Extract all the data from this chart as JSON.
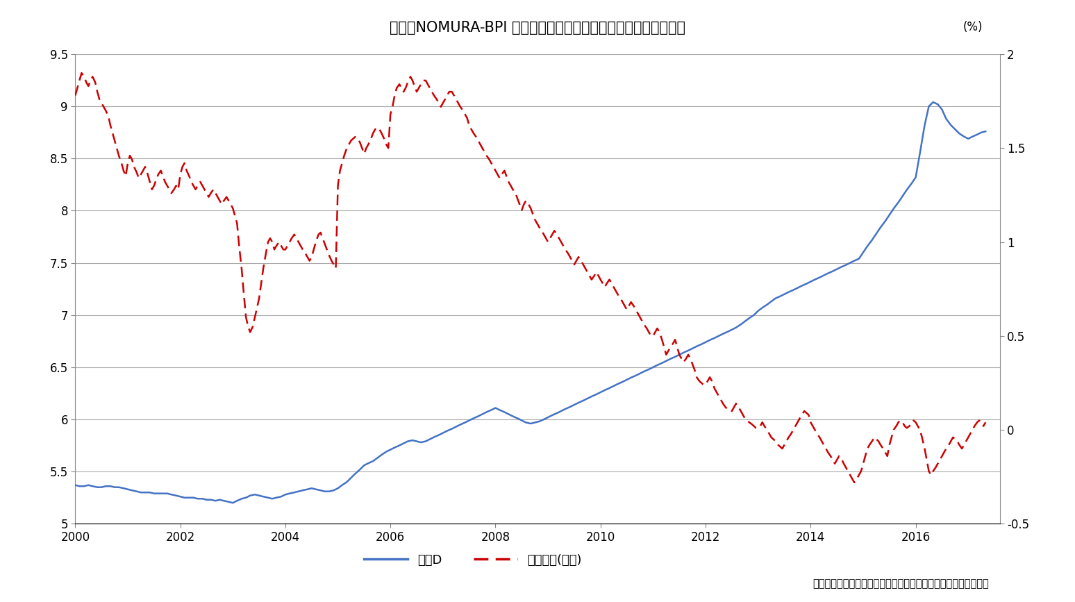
{
  "title": "図表：NOMURA-BPI 総合の修正デュレーションと長期金利の推移",
  "pct_label": "(%)",
  "source_text": "出所：野村證券及び日本相互証券の公表する数値を基に筆者作成",
  "legend_blue": "修正D",
  "legend_red": "長期金利(右軸)",
  "xlim_left": 2000.0,
  "xlim_right": 2017.6,
  "ylim_left": [
    5.0,
    9.5
  ],
  "ylim_right": [
    -0.5,
    2.0
  ],
  "yticks_left": [
    5.0,
    5.5,
    6.0,
    6.5,
    7.0,
    7.5,
    8.0,
    8.5,
    9.0,
    9.5
  ],
  "yticks_right": [
    -0.5,
    0.0,
    0.5,
    1.0,
    1.5,
    2.0
  ],
  "xticks": [
    2000,
    2002,
    2004,
    2006,
    2008,
    2010,
    2012,
    2014,
    2016
  ],
  "blue_color": "#4472C4",
  "red_color": "#CC0000",
  "grid_color": "#AAAAAA",
  "background_color": "#FFFFFF",
  "title_fontsize": 15,
  "axis_fontsize": 12,
  "legend_fontsize": 13,
  "blue_x": [
    2000.0,
    2000.08,
    2000.17,
    2000.25,
    2000.33,
    2000.42,
    2000.5,
    2000.58,
    2000.67,
    2000.75,
    2000.83,
    2000.92,
    2001.0,
    2001.08,
    2001.17,
    2001.25,
    2001.33,
    2001.42,
    2001.5,
    2001.58,
    2001.67,
    2001.75,
    2001.83,
    2001.92,
    2002.0,
    2002.08,
    2002.17,
    2002.25,
    2002.33,
    2002.42,
    2002.5,
    2002.58,
    2002.67,
    2002.75,
    2002.83,
    2002.92,
    2003.0,
    2003.08,
    2003.17,
    2003.25,
    2003.33,
    2003.42,
    2003.5,
    2003.58,
    2003.67,
    2003.75,
    2003.83,
    2003.92,
    2004.0,
    2004.08,
    2004.17,
    2004.25,
    2004.33,
    2004.42,
    2004.5,
    2004.58,
    2004.67,
    2004.75,
    2004.83,
    2004.92,
    2005.0,
    2005.08,
    2005.17,
    2005.25,
    2005.33,
    2005.42,
    2005.5,
    2005.58,
    2005.67,
    2005.75,
    2005.83,
    2005.92,
    2006.0,
    2006.08,
    2006.17,
    2006.25,
    2006.33,
    2006.42,
    2006.5,
    2006.58,
    2006.67,
    2006.75,
    2006.83,
    2006.92,
    2007.0,
    2007.08,
    2007.17,
    2007.25,
    2007.33,
    2007.42,
    2007.5,
    2007.58,
    2007.67,
    2007.75,
    2007.83,
    2007.92,
    2008.0,
    2008.08,
    2008.17,
    2008.25,
    2008.33,
    2008.42,
    2008.5,
    2008.58,
    2008.67,
    2008.75,
    2008.83,
    2008.92,
    2009.0,
    2009.08,
    2009.17,
    2009.25,
    2009.33,
    2009.42,
    2009.5,
    2009.58,
    2009.67,
    2009.75,
    2009.83,
    2009.92,
    2010.0,
    2010.08,
    2010.17,
    2010.25,
    2010.33,
    2010.42,
    2010.5,
    2010.58,
    2010.67,
    2010.75,
    2010.83,
    2010.92,
    2011.0,
    2011.08,
    2011.17,
    2011.25,
    2011.33,
    2011.42,
    2011.5,
    2011.58,
    2011.67,
    2011.75,
    2011.83,
    2011.92,
    2012.0,
    2012.08,
    2012.17,
    2012.25,
    2012.33,
    2012.42,
    2012.5,
    2012.58,
    2012.67,
    2012.75,
    2012.83,
    2012.92,
    2013.0,
    2013.08,
    2013.17,
    2013.25,
    2013.33,
    2013.42,
    2013.5,
    2013.58,
    2013.67,
    2013.75,
    2013.83,
    2013.92,
    2014.0,
    2014.08,
    2014.17,
    2014.25,
    2014.33,
    2014.42,
    2014.5,
    2014.58,
    2014.67,
    2014.75,
    2014.83,
    2014.92,
    2015.0,
    2015.08,
    2015.17,
    2015.25,
    2015.33,
    2015.42,
    2015.5,
    2015.58,
    2015.67,
    2015.75,
    2015.83,
    2015.92,
    2016.0,
    2016.08,
    2016.17,
    2016.25,
    2016.33,
    2016.42,
    2016.5,
    2016.58,
    2016.67,
    2016.75,
    2016.83,
    2016.92,
    2017.0,
    2017.08,
    2017.17,
    2017.25,
    2017.33
  ],
  "blue_y": [
    5.37,
    5.36,
    5.36,
    5.37,
    5.36,
    5.35,
    5.35,
    5.36,
    5.36,
    5.35,
    5.35,
    5.34,
    5.33,
    5.32,
    5.31,
    5.3,
    5.3,
    5.3,
    5.29,
    5.29,
    5.29,
    5.29,
    5.28,
    5.27,
    5.26,
    5.25,
    5.25,
    5.25,
    5.24,
    5.24,
    5.23,
    5.23,
    5.22,
    5.23,
    5.22,
    5.21,
    5.2,
    5.22,
    5.24,
    5.25,
    5.27,
    5.28,
    5.27,
    5.26,
    5.25,
    5.24,
    5.25,
    5.26,
    5.28,
    5.29,
    5.3,
    5.31,
    5.32,
    5.33,
    5.34,
    5.33,
    5.32,
    5.31,
    5.31,
    5.32,
    5.34,
    5.37,
    5.4,
    5.44,
    5.48,
    5.52,
    5.56,
    5.58,
    5.6,
    5.63,
    5.66,
    5.69,
    5.71,
    5.73,
    5.75,
    5.77,
    5.79,
    5.8,
    5.79,
    5.78,
    5.79,
    5.81,
    5.83,
    5.85,
    5.87,
    5.89,
    5.91,
    5.93,
    5.95,
    5.97,
    5.99,
    6.01,
    6.03,
    6.05,
    6.07,
    6.09,
    6.11,
    6.09,
    6.07,
    6.05,
    6.03,
    6.01,
    5.99,
    5.97,
    5.96,
    5.97,
    5.98,
    6.0,
    6.02,
    6.04,
    6.06,
    6.08,
    6.1,
    6.12,
    6.14,
    6.16,
    6.18,
    6.2,
    6.22,
    6.24,
    6.26,
    6.28,
    6.3,
    6.32,
    6.34,
    6.36,
    6.38,
    6.4,
    6.42,
    6.44,
    6.46,
    6.48,
    6.5,
    6.52,
    6.54,
    6.56,
    6.58,
    6.6,
    6.62,
    6.64,
    6.66,
    6.68,
    6.7,
    6.72,
    6.74,
    6.76,
    6.78,
    6.8,
    6.82,
    6.84,
    6.86,
    6.88,
    6.91,
    6.94,
    6.97,
    7.0,
    7.04,
    7.07,
    7.1,
    7.13,
    7.16,
    7.18,
    7.2,
    7.22,
    7.24,
    7.26,
    7.28,
    7.3,
    7.32,
    7.34,
    7.36,
    7.38,
    7.4,
    7.42,
    7.44,
    7.46,
    7.48,
    7.5,
    7.52,
    7.54,
    7.6,
    7.66,
    7.72,
    7.78,
    7.84,
    7.9,
    7.96,
    8.02,
    8.08,
    8.14,
    8.2,
    8.26,
    8.32,
    8.55,
    8.82,
    9.0,
    9.04,
    9.02,
    8.97,
    8.88,
    8.82,
    8.78,
    8.74,
    8.71,
    8.69,
    8.71,
    8.73,
    8.75,
    8.76
  ],
  "red_x": [
    2000.0,
    2000.04,
    2000.08,
    2000.12,
    2000.17,
    2000.21,
    2000.25,
    2000.29,
    2000.33,
    2000.38,
    2000.42,
    2000.46,
    2000.5,
    2000.54,
    2000.58,
    2000.63,
    2000.67,
    2000.71,
    2000.75,
    2000.79,
    2000.83,
    2000.88,
    2000.92,
    2000.96,
    2001.0,
    2001.04,
    2001.08,
    2001.12,
    2001.17,
    2001.21,
    2001.25,
    2001.29,
    2001.33,
    2001.38,
    2001.42,
    2001.46,
    2001.5,
    2001.54,
    2001.58,
    2001.63,
    2001.67,
    2001.71,
    2001.75,
    2001.79,
    2001.83,
    2001.88,
    2001.92,
    2001.96,
    2002.0,
    2002.04,
    2002.08,
    2002.12,
    2002.17,
    2002.21,
    2002.25,
    2002.29,
    2002.33,
    2002.38,
    2002.42,
    2002.46,
    2002.5,
    2002.54,
    2002.58,
    2002.63,
    2002.67,
    2002.71,
    2002.75,
    2002.79,
    2002.83,
    2002.88,
    2002.92,
    2002.96,
    2003.0,
    2003.04,
    2003.08,
    2003.12,
    2003.17,
    2003.21,
    2003.25,
    2003.29,
    2003.33,
    2003.38,
    2003.42,
    2003.46,
    2003.5,
    2003.54,
    2003.58,
    2003.63,
    2003.67,
    2003.71,
    2003.75,
    2003.79,
    2003.83,
    2003.88,
    2003.92,
    2003.96,
    2004.0,
    2004.04,
    2004.08,
    2004.12,
    2004.17,
    2004.21,
    2004.25,
    2004.29,
    2004.33,
    2004.38,
    2004.42,
    2004.46,
    2004.5,
    2004.54,
    2004.58,
    2004.63,
    2004.67,
    2004.71,
    2004.75,
    2004.79,
    2004.83,
    2004.88,
    2004.92,
    2004.96,
    2005.0,
    2005.04,
    2005.08,
    2005.12,
    2005.17,
    2005.21,
    2005.25,
    2005.29,
    2005.33,
    2005.38,
    2005.42,
    2005.46,
    2005.5,
    2005.54,
    2005.58,
    2005.63,
    2005.67,
    2005.71,
    2005.75,
    2005.79,
    2005.83,
    2005.88,
    2005.92,
    2005.96,
    2006.0,
    2006.04,
    2006.08,
    2006.12,
    2006.17,
    2006.21,
    2006.25,
    2006.29,
    2006.33,
    2006.38,
    2006.42,
    2006.46,
    2006.5,
    2006.54,
    2006.58,
    2006.63,
    2006.67,
    2006.71,
    2006.75,
    2006.79,
    2006.83,
    2006.88,
    2006.92,
    2006.96,
    2007.0,
    2007.04,
    2007.08,
    2007.12,
    2007.17,
    2007.21,
    2007.25,
    2007.29,
    2007.33,
    2007.38,
    2007.42,
    2007.46,
    2007.5,
    2007.54,
    2007.58,
    2007.63,
    2007.67,
    2007.71,
    2007.75,
    2007.79,
    2007.83,
    2007.88,
    2007.92,
    2007.96,
    2008.0,
    2008.04,
    2008.08,
    2008.12,
    2008.17,
    2008.21,
    2008.25,
    2008.29,
    2008.33,
    2008.38,
    2008.42,
    2008.46,
    2008.5,
    2008.54,
    2008.58,
    2008.63,
    2008.67,
    2008.71,
    2008.75,
    2008.79,
    2008.83,
    2008.88,
    2008.92,
    2008.96,
    2009.0,
    2009.04,
    2009.08,
    2009.12,
    2009.17,
    2009.21,
    2009.25,
    2009.29,
    2009.33,
    2009.38,
    2009.42,
    2009.46,
    2009.5,
    2009.54,
    2009.58,
    2009.63,
    2009.67,
    2009.71,
    2009.75,
    2009.79,
    2009.83,
    2009.88,
    2009.92,
    2009.96,
    2010.0,
    2010.04,
    2010.08,
    2010.12,
    2010.17,
    2010.21,
    2010.25,
    2010.29,
    2010.33,
    2010.38,
    2010.42,
    2010.46,
    2010.5,
    2010.54,
    2010.58,
    2010.63,
    2010.67,
    2010.71,
    2010.75,
    2010.79,
    2010.83,
    2010.88,
    2010.92,
    2010.96,
    2011.0,
    2011.04,
    2011.08,
    2011.12,
    2011.17,
    2011.21,
    2011.25,
    2011.29,
    2011.33,
    2011.38,
    2011.42,
    2011.46,
    2011.5,
    2011.54,
    2011.58,
    2011.63,
    2011.67,
    2011.71,
    2011.75,
    2011.79,
    2011.83,
    2011.88,
    2011.92,
    2011.96,
    2012.0,
    2012.04,
    2012.08,
    2012.12,
    2012.17,
    2012.21,
    2012.25,
    2012.29,
    2012.33,
    2012.38,
    2012.42,
    2012.46,
    2012.5,
    2012.54,
    2012.58,
    2012.63,
    2012.67,
    2012.71,
    2012.75,
    2012.79,
    2012.83,
    2012.88,
    2012.92,
    2012.96,
    2013.0,
    2013.04,
    2013.08,
    2013.12,
    2013.17,
    2013.21,
    2013.25,
    2013.29,
    2013.33,
    2013.38,
    2013.42,
    2013.46,
    2013.5,
    2013.54,
    2013.58,
    2013.63,
    2013.67,
    2013.71,
    2013.75,
    2013.79,
    2013.83,
    2013.88,
    2013.92,
    2013.96,
    2014.0,
    2014.04,
    2014.08,
    2014.12,
    2014.17,
    2014.21,
    2014.25,
    2014.29,
    2014.33,
    2014.38,
    2014.42,
    2014.46,
    2014.5,
    2014.54,
    2014.58,
    2014.63,
    2014.67,
    2014.71,
    2014.75,
    2014.79,
    2014.83,
    2014.88,
    2014.92,
    2014.96,
    2015.0,
    2015.04,
    2015.08,
    2015.12,
    2015.17,
    2015.21,
    2015.25,
    2015.29,
    2015.33,
    2015.38,
    2015.42,
    2015.46,
    2015.5,
    2015.54,
    2015.58,
    2015.63,
    2015.67,
    2015.71,
    2015.75,
    2015.79,
    2015.83,
    2015.88,
    2015.92,
    2015.96,
    2016.0,
    2016.04,
    2016.08,
    2016.12,
    2016.17,
    2016.21,
    2016.25,
    2016.29,
    2016.33,
    2016.38,
    2016.42,
    2016.46,
    2016.5,
    2016.54,
    2016.58,
    2016.63,
    2016.67,
    2016.71,
    2016.75,
    2016.79,
    2016.83,
    2016.88,
    2016.92,
    2016.96,
    2017.0,
    2017.04,
    2017.08,
    2017.12,
    2017.17,
    2017.21,
    2017.25,
    2017.29,
    2017.33
  ],
  "red_y": [
    1.78,
    1.82,
    1.86,
    1.9,
    1.88,
    1.85,
    1.83,
    1.86,
    1.88,
    1.85,
    1.8,
    1.76,
    1.74,
    1.72,
    1.7,
    1.67,
    1.62,
    1.58,
    1.54,
    1.5,
    1.46,
    1.42,
    1.38,
    1.35,
    1.42,
    1.46,
    1.44,
    1.4,
    1.37,
    1.34,
    1.36,
    1.38,
    1.4,
    1.36,
    1.32,
    1.28,
    1.3,
    1.33,
    1.36,
    1.38,
    1.35,
    1.32,
    1.3,
    1.28,
    1.26,
    1.28,
    1.3,
    1.28,
    1.36,
    1.4,
    1.42,
    1.38,
    1.35,
    1.32,
    1.3,
    1.28,
    1.3,
    1.32,
    1.3,
    1.28,
    1.26,
    1.24,
    1.26,
    1.28,
    1.26,
    1.24,
    1.22,
    1.2,
    1.22,
    1.24,
    1.22,
    1.2,
    1.18,
    1.14,
    1.1,
    0.98,
    0.85,
    0.72,
    0.6,
    0.55,
    0.52,
    0.55,
    0.6,
    0.65,
    0.7,
    0.78,
    0.86,
    0.94,
    1.0,
    1.02,
    1.0,
    0.96,
    0.98,
    1.0,
    0.98,
    0.96,
    0.96,
    0.98,
    1.0,
    1.02,
    1.04,
    1.02,
    1.0,
    0.98,
    0.96,
    0.94,
    0.92,
    0.9,
    0.92,
    0.96,
    1.0,
    1.04,
    1.05,
    1.02,
    0.99,
    0.96,
    0.93,
    0.9,
    0.88,
    0.86,
    1.3,
    1.38,
    1.42,
    1.46,
    1.5,
    1.52,
    1.54,
    1.55,
    1.56,
    1.55,
    1.53,
    1.5,
    1.47,
    1.5,
    1.52,
    1.55,
    1.58,
    1.6,
    1.61,
    1.6,
    1.58,
    1.55,
    1.52,
    1.5,
    1.68,
    1.72,
    1.78,
    1.82,
    1.84,
    1.82,
    1.8,
    1.82,
    1.85,
    1.88,
    1.86,
    1.83,
    1.8,
    1.82,
    1.84,
    1.86,
    1.86,
    1.84,
    1.82,
    1.8,
    1.78,
    1.76,
    1.74,
    1.72,
    1.74,
    1.76,
    1.78,
    1.8,
    1.8,
    1.78,
    1.76,
    1.74,
    1.72,
    1.7,
    1.68,
    1.66,
    1.62,
    1.6,
    1.58,
    1.56,
    1.54,
    1.52,
    1.5,
    1.48,
    1.46,
    1.44,
    1.42,
    1.4,
    1.38,
    1.36,
    1.34,
    1.36,
    1.38,
    1.35,
    1.32,
    1.3,
    1.28,
    1.26,
    1.23,
    1.2,
    1.17,
    1.2,
    1.22,
    1.2,
    1.18,
    1.15,
    1.12,
    1.1,
    1.08,
    1.06,
    1.04,
    1.02,
    1.0,
    1.02,
    1.04,
    1.06,
    1.04,
    1.02,
    1.0,
    0.98,
    0.96,
    0.94,
    0.92,
    0.9,
    0.88,
    0.9,
    0.92,
    0.9,
    0.88,
    0.86,
    0.84,
    0.82,
    0.8,
    0.82,
    0.84,
    0.82,
    0.8,
    0.78,
    0.76,
    0.78,
    0.8,
    0.78,
    0.76,
    0.74,
    0.72,
    0.7,
    0.68,
    0.66,
    0.64,
    0.66,
    0.68,
    0.66,
    0.64,
    0.62,
    0.6,
    0.58,
    0.56,
    0.54,
    0.52,
    0.5,
    0.5,
    0.52,
    0.54,
    0.52,
    0.48,
    0.44,
    0.4,
    0.42,
    0.44,
    0.46,
    0.48,
    0.44,
    0.4,
    0.38,
    0.36,
    0.38,
    0.4,
    0.38,
    0.35,
    0.32,
    0.28,
    0.26,
    0.25,
    0.24,
    0.24,
    0.26,
    0.28,
    0.26,
    0.22,
    0.2,
    0.18,
    0.16,
    0.14,
    0.12,
    0.11,
    0.1,
    0.1,
    0.12,
    0.14,
    0.12,
    0.1,
    0.08,
    0.06,
    0.05,
    0.04,
    0.03,
    0.02,
    0.01,
    0.01,
    0.02,
    0.04,
    0.02,
    0.0,
    -0.02,
    -0.04,
    -0.05,
    -0.06,
    -0.08,
    -0.09,
    -0.1,
    -0.08,
    -0.06,
    -0.04,
    -0.02,
    0.0,
    0.02,
    0.04,
    0.06,
    0.08,
    0.1,
    0.09,
    0.08,
    0.04,
    0.02,
    0.0,
    -0.02,
    -0.04,
    -0.06,
    -0.08,
    -0.1,
    -0.12,
    -0.14,
    -0.16,
    -0.18,
    -0.16,
    -0.14,
    -0.15,
    -0.18,
    -0.2,
    -0.22,
    -0.24,
    -0.26,
    -0.28,
    -0.26,
    -0.24,
    -0.22,
    -0.18,
    -0.14,
    -0.1,
    -0.08,
    -0.06,
    -0.04,
    -0.05,
    -0.06,
    -0.08,
    -0.1,
    -0.12,
    -0.14,
    -0.08,
    -0.04,
    0.0,
    0.02,
    0.04,
    0.05,
    0.04,
    0.02,
    0.01,
    0.02,
    0.04,
    0.05,
    0.04,
    0.02,
    0.0,
    -0.04,
    -0.1,
    -0.16,
    -0.22,
    -0.24,
    -0.22,
    -0.2,
    -0.18,
    -0.16,
    -0.14,
    -0.12,
    -0.1,
    -0.08,
    -0.06,
    -0.04,
    -0.05,
    -0.06,
    -0.08,
    -0.1,
    -0.08,
    -0.06,
    -0.04,
    -0.02,
    0.0,
    0.02,
    0.04,
    0.05,
    0.04,
    0.02,
    0.04
  ]
}
